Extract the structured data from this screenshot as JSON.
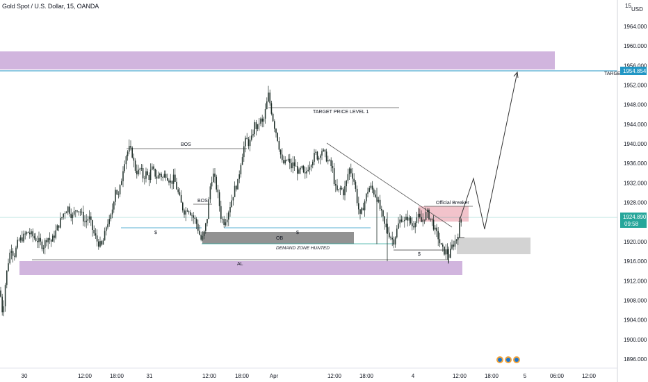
{
  "header": {
    "title": "Gold Spot / U.S. Dollar, 15, OANDA"
  },
  "price_axis": {
    "currency": "USD",
    "top_label": "15"
  },
  "chart_data": {
    "type": "candlestick",
    "title": "Gold Spot / U.S. Dollar, 15, OANDA",
    "ylim": [
      1894,
      1968
    ],
    "y_ticks": [
      1896,
      1900,
      1904,
      1908,
      1912,
      1916,
      1920,
      1924,
      1928,
      1932,
      1936,
      1940,
      1944,
      1948,
      1952,
      1956,
      1960,
      1964
    ],
    "y_tick_labels": [
      "1896.000",
      "1900.000",
      "1904.000",
      "1908.000",
      "1912.000",
      "1916.000",
      "1920.000",
      "1924.000",
      "1928.000",
      "1932.000",
      "1936.000",
      "1940.000",
      "1944.000",
      "1948.000",
      "1952.000",
      "1956.000",
      "1960.000",
      "1964.000"
    ],
    "x_tick_labels": [
      "30",
      "12:00",
      "18:00",
      "31",
      "12:00",
      "18:00",
      "Apr",
      "12:00",
      "18:00",
      "4",
      "12:00",
      "18:00",
      "5",
      "06:00",
      "12:00"
    ],
    "price_path": [
      [
        0,
        1910
      ],
      [
        4,
        1905
      ],
      [
        8,
        1912
      ],
      [
        10,
        1914
      ],
      [
        12,
        1916
      ],
      [
        16,
        1919
      ],
      [
        20,
        1917
      ],
      [
        26,
        1920
      ],
      [
        34,
        1921
      ],
      [
        40,
        1922
      ],
      [
        48,
        1921
      ],
      [
        56,
        1920
      ],
      [
        62,
        1919
      ],
      [
        68,
        1921
      ],
      [
        74,
        1920
      ],
      [
        80,
        1922
      ],
      [
        86,
        1924
      ],
      [
        92,
        1926
      ],
      [
        98,
        1927
      ],
      [
        104,
        1925
      ],
      [
        110,
        1927
      ],
      [
        116,
        1926
      ],
      [
        122,
        1924
      ],
      [
        128,
        1925
      ],
      [
        134,
        1922
      ],
      [
        140,
        1920
      ],
      [
        146,
        1919
      ],
      [
        150,
        1921
      ],
      [
        154,
        1924
      ],
      [
        158,
        1924
      ],
      [
        162,
        1927
      ],
      [
        166,
        1931
      ],
      [
        170,
        1929
      ],
      [
        174,
        1932
      ],
      [
        178,
        1936
      ],
      [
        182,
        1938
      ],
      [
        186,
        1939
      ],
      [
        190,
        1938
      ],
      [
        194,
        1935
      ],
      [
        198,
        1934
      ],
      [
        202,
        1935
      ],
      [
        206,
        1933
      ],
      [
        210,
        1934
      ],
      [
        214,
        1933
      ],
      [
        218,
        1935
      ],
      [
        222,
        1934
      ],
      [
        226,
        1933
      ],
      [
        230,
        1934
      ],
      [
        234,
        1933
      ],
      [
        238,
        1934
      ],
      [
        242,
        1933
      ],
      [
        246,
        1932
      ],
      [
        250,
        1933
      ],
      [
        254,
        1931
      ],
      [
        258,
        1929
      ],
      [
        262,
        1927
      ],
      [
        266,
        1926
      ],
      [
        270,
        1927
      ],
      [
        274,
        1926
      ],
      [
        278,
        1925
      ],
      [
        282,
        1924
      ],
      [
        286,
        1922
      ],
      [
        290,
        1920
      ],
      [
        294,
        1922
      ],
      [
        298,
        1925
      ],
      [
        302,
        1931
      ],
      [
        306,
        1934
      ],
      [
        310,
        1932
      ],
      [
        314,
        1929
      ],
      [
        318,
        1925
      ],
      [
        322,
        1924
      ],
      [
        326,
        1925
      ],
      [
        330,
        1927
      ],
      [
        334,
        1929
      ],
      [
        338,
        1931
      ],
      [
        342,
        1932
      ],
      [
        346,
        1936
      ],
      [
        350,
        1939
      ],
      [
        354,
        1941
      ],
      [
        358,
        1940
      ],
      [
        362,
        1941
      ],
      [
        366,
        1944
      ],
      [
        370,
        1943
      ],
      [
        374,
        1945
      ],
      [
        378,
        1944
      ],
      [
        382,
        1947
      ],
      [
        386,
        1950
      ],
      [
        390,
        1947
      ],
      [
        394,
        1944
      ],
      [
        398,
        1942
      ],
      [
        402,
        1939
      ],
      [
        406,
        1936
      ],
      [
        410,
        1936
      ],
      [
        414,
        1937
      ],
      [
        418,
        1935
      ],
      [
        422,
        1936
      ],
      [
        426,
        1935
      ],
      [
        430,
        1934
      ],
      [
        434,
        1935
      ],
      [
        438,
        1933
      ],
      [
        442,
        1935
      ],
      [
        446,
        1936
      ],
      [
        450,
        1937
      ],
      [
        454,
        1938
      ],
      [
        458,
        1937
      ],
      [
        462,
        1939
      ],
      [
        466,
        1938
      ],
      [
        470,
        1937
      ],
      [
        474,
        1936
      ],
      [
        478,
        1935
      ],
      [
        482,
        1931
      ],
      [
        486,
        1930
      ],
      [
        490,
        1931
      ],
      [
        494,
        1930
      ],
      [
        498,
        1932
      ],
      [
        502,
        1935
      ],
      [
        506,
        1934
      ],
      [
        510,
        1932
      ],
      [
        514,
        1928
      ],
      [
        518,
        1925
      ],
      [
        522,
        1927
      ],
      [
        526,
        1929
      ],
      [
        530,
        1931
      ],
      [
        534,
        1931
      ],
      [
        538,
        1930
      ],
      [
        542,
        1929
      ],
      [
        546,
        1927
      ],
      [
        550,
        1925
      ],
      [
        554,
        1923
      ],
      [
        558,
        1922
      ],
      [
        562,
        1921
      ],
      [
        566,
        1920
      ],
      [
        570,
        1922
      ],
      [
        574,
        1924
      ],
      [
        578,
        1925
      ],
      [
        582,
        1924
      ],
      [
        586,
        1925
      ],
      [
        590,
        1924
      ],
      [
        594,
        1923
      ],
      [
        598,
        1925
      ],
      [
        602,
        1925
      ],
      [
        606,
        1924
      ],
      [
        610,
        1925
      ],
      [
        614,
        1926
      ],
      [
        618,
        1925
      ],
      [
        622,
        1924
      ],
      [
        626,
        1922
      ],
      [
        630,
        1921
      ],
      [
        634,
        1919
      ],
      [
        638,
        1918
      ],
      [
        642,
        1918
      ],
      [
        646,
        1917
      ],
      [
        650,
        1919
      ],
      [
        654,
        1920
      ],
      [
        658,
        1921
      ],
      [
        662,
        1924
      ],
      [
        664,
        1925
      ]
    ],
    "current_price": "1924.890",
    "countdown": "09:58",
    "target_price": "1954.854",
    "annotations": {
      "bos_1": "BOS",
      "bos_2": "BOS",
      "dollar_1": "$",
      "dollar_2": "$",
      "dollar_3": "$",
      "ob": "OB",
      "demand": "DEMAND ZONE HUNTED",
      "al": "AL",
      "target_level": "TARGET  PRICE LEVEL 1",
      "breaker": "Official Breaker",
      "target": "TARGET"
    },
    "colors": {
      "up": "#26a69a",
      "down": "#ef5350",
      "candle": "#1e2d28",
      "purple_zone": "#c9a8d8",
      "pink_zone": "#f0b8c2",
      "grey_zone": "#8c8c8c",
      "target_line": "#2196c4",
      "current_line": "#26a69a"
    }
  }
}
